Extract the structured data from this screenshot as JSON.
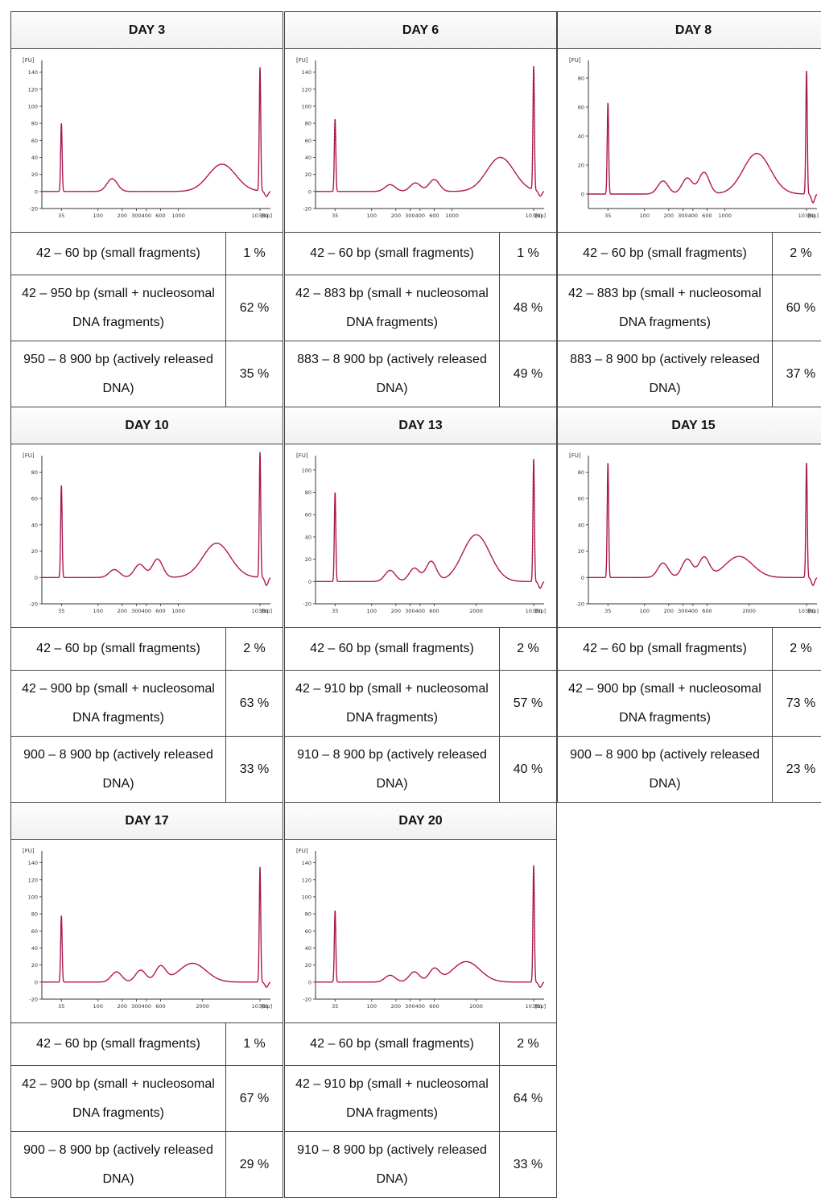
{
  "panels": [
    {
      "title": "DAY 3",
      "rows": [
        {
          "label": "42 – 60 bp (small fragments)",
          "pct": "1 %"
        },
        {
          "label": "42 – 950 bp (small + nucleosomal DNA fragments)",
          "pct": "62 %"
        },
        {
          "label": "950 – 8 900 bp (actively released DNA)",
          "pct": "35 %"
        }
      ]
    },
    {
      "title": "DAY 6",
      "rows": [
        {
          "label": "42 – 60 bp (small fragments)",
          "pct": "1 %"
        },
        {
          "label": "42 – 883 bp (small + nucleosomal DNA fragments)",
          "pct": "48 %"
        },
        {
          "label": "883 – 8 900 bp (actively released DNA)",
          "pct": "49 %"
        }
      ]
    },
    {
      "title": "DAY 8",
      "rows": [
        {
          "label": "42 – 60 bp (small fragments)",
          "pct": "2 %"
        },
        {
          "label": "42 – 883 bp (small + nucleosomal DNA fragments)",
          "pct": "60 %"
        },
        {
          "label": "883 – 8 900 bp (actively released DNA)",
          "pct": "37 %"
        }
      ]
    },
    {
      "title": "DAY 10",
      "rows": [
        {
          "label": "42 – 60 bp (small fragments)",
          "pct": "2 %"
        },
        {
          "label": "42 – 900 bp (small + nucleosomal DNA fragments)",
          "pct": "63 %"
        },
        {
          "label": "900 – 8 900 bp (actively released DNA)",
          "pct": "33 %"
        }
      ]
    },
    {
      "title": "DAY 13",
      "rows": [
        {
          "label": "42 – 60 bp (small fragments)",
          "pct": "2 %"
        },
        {
          "label": "42 – 910 bp (small + nucleosomal DNA fragments)",
          "pct": "57 %"
        },
        {
          "label": "910 – 8 900 bp (actively released DNA)",
          "pct": "40 %"
        }
      ]
    },
    {
      "title": "DAY 15",
      "rows": [
        {
          "label": "42 – 60 bp (small fragments)",
          "pct": "2 %"
        },
        {
          "label": "42 – 900 bp (small + nucleosomal DNA fragments)",
          "pct": "73 %"
        },
        {
          "label": "900 – 8 900 bp (actively released DNA)",
          "pct": "23 %"
        }
      ]
    },
    {
      "title": "DAY 17",
      "rows": [
        {
          "label": "42 – 60 bp (small fragments)",
          "pct": "1 %"
        },
        {
          "label": "42 – 900 bp (small + nucleosomal DNA fragments)",
          "pct": "67 %"
        },
        {
          "label": "900 – 8 900 bp (actively released DNA)",
          "pct": "29 %"
        }
      ]
    },
    {
      "title": "DAY 20",
      "rows": [
        {
          "label": "42 – 60 bp (small fragments)",
          "pct": "2 %"
        },
        {
          "label": "42 – 910 bp (small + nucleosomal DNA fragments)",
          "pct": "64 %"
        },
        {
          "label": "910 – 8 900 bp (actively released DNA)",
          "pct": "33 %"
        }
      ]
    }
  ],
  "chart_data": [
    {
      "type": "line",
      "title": "DAY 3",
      "xlabel": "[bp]",
      "ylabel": "[FU]",
      "ylim": [
        -20,
        150
      ],
      "yticks": [
        -20,
        0,
        20,
        40,
        60,
        80,
        100,
        120,
        140
      ],
      "xticks": [
        "35",
        "100",
        "200",
        "300",
        "400",
        "600",
        "1000",
        "10380"
      ],
      "line_color": "#c2185b",
      "peaks": [
        {
          "x": 35,
          "y": 80
        },
        {
          "x": 150,
          "y": 15
        },
        {
          "x": 3500,
          "y": 32
        },
        {
          "x": 10380,
          "y": 145
        }
      ]
    },
    {
      "type": "line",
      "title": "DAY 6",
      "xlabel": "[bp]",
      "ylabel": "[FU]",
      "ylim": [
        -20,
        150
      ],
      "yticks": [
        -20,
        0,
        20,
        40,
        60,
        80,
        100,
        120,
        140
      ],
      "xticks": [
        "35",
        "100",
        "200",
        "300",
        "400",
        "600",
        "1000",
        "10380"
      ],
      "line_color": "#c2185b",
      "peaks": [
        {
          "x": 35,
          "y": 85
        },
        {
          "x": 170,
          "y": 8
        },
        {
          "x": 350,
          "y": 10
        },
        {
          "x": 600,
          "y": 14
        },
        {
          "x": 4000,
          "y": 40
        },
        {
          "x": 10380,
          "y": 145
        }
      ]
    },
    {
      "type": "line",
      "title": "DAY 8",
      "xlabel": "[bp]",
      "ylabel": "[FU]",
      "ylim": [
        -10,
        90
      ],
      "yticks": [
        0,
        20,
        40,
        60,
        80
      ],
      "xticks": [
        "35",
        "100",
        "200",
        "300",
        "400",
        "600",
        "1000",
        "10380"
      ],
      "line_color": "#c2185b",
      "peaks": [
        {
          "x": 35,
          "y": 63
        },
        {
          "x": 170,
          "y": 9
        },
        {
          "x": 340,
          "y": 11
        },
        {
          "x": 550,
          "y": 15
        },
        {
          "x": 2500,
          "y": 28
        },
        {
          "x": 10380,
          "y": 85
        }
      ]
    },
    {
      "type": "line",
      "title": "DAY 10",
      "xlabel": "[bp]",
      "ylabel": "[FU]",
      "ylim": [
        -20,
        90
      ],
      "yticks": [
        -20,
        0,
        20,
        40,
        60,
        80
      ],
      "xticks": [
        "35",
        "100",
        "200",
        "300",
        "400",
        "600",
        "1000",
        "10380"
      ],
      "line_color": "#c2185b",
      "peaks": [
        {
          "x": 35,
          "y": 70
        },
        {
          "x": 160,
          "y": 6
        },
        {
          "x": 330,
          "y": 10
        },
        {
          "x": 550,
          "y": 14
        },
        {
          "x": 3000,
          "y": 26
        },
        {
          "x": 10380,
          "y": 95
        }
      ]
    },
    {
      "type": "line",
      "title": "DAY 13",
      "xlabel": "[bp]",
      "ylabel": "[FU]",
      "ylim": [
        -20,
        110
      ],
      "yticks": [
        -20,
        0,
        20,
        40,
        60,
        80,
        100
      ],
      "xticks": [
        "35",
        "100",
        "200",
        "300",
        "400",
        "600",
        "2000",
        "10380"
      ],
      "line_color": "#c2185b",
      "peaks": [
        {
          "x": 35,
          "y": 80
        },
        {
          "x": 170,
          "y": 10
        },
        {
          "x": 340,
          "y": 12
        },
        {
          "x": 550,
          "y": 18
        },
        {
          "x": 2000,
          "y": 42
        },
        {
          "x": 10380,
          "y": 110
        }
      ]
    },
    {
      "type": "line",
      "title": "DAY 15",
      "xlabel": "[bp]",
      "ylabel": "[FU]",
      "ylim": [
        -20,
        90
      ],
      "yticks": [
        -20,
        0,
        20,
        40,
        60,
        80
      ],
      "xticks": [
        "35",
        "100",
        "200",
        "300",
        "400",
        "600",
        "2000",
        "10380"
      ],
      "line_color": "#c2185b",
      "peaks": [
        {
          "x": 35,
          "y": 87
        },
        {
          "x": 170,
          "y": 11
        },
        {
          "x": 340,
          "y": 14
        },
        {
          "x": 550,
          "y": 15
        },
        {
          "x": 1500,
          "y": 16
        },
        {
          "x": 10380,
          "y": 87
        }
      ]
    },
    {
      "type": "line",
      "title": "DAY 17",
      "xlabel": "[bp]",
      "ylabel": "[FU]",
      "ylim": [
        -20,
        150
      ],
      "yticks": [
        -20,
        0,
        20,
        40,
        60,
        80,
        100,
        120,
        140
      ],
      "xticks": [
        "35",
        "100",
        "200",
        "300",
        "400",
        "600",
        "2000",
        "10380"
      ],
      "line_color": "#c2185b",
      "peaks": [
        {
          "x": 35,
          "y": 78
        },
        {
          "x": 170,
          "y": 12
        },
        {
          "x": 340,
          "y": 14
        },
        {
          "x": 600,
          "y": 18
        },
        {
          "x": 1500,
          "y": 22
        },
        {
          "x": 10380,
          "y": 135
        }
      ]
    },
    {
      "type": "line",
      "title": "DAY 20",
      "xlabel": "[bp]",
      "ylabel": "[FU]",
      "ylim": [
        -20,
        150
      ],
      "yticks": [
        -20,
        0,
        20,
        40,
        60,
        80,
        100,
        120,
        140
      ],
      "xticks": [
        "35",
        "100",
        "200",
        "300",
        "400",
        "600",
        "2000",
        "10380"
      ],
      "line_color": "#c2185b",
      "peaks": [
        {
          "x": 35,
          "y": 84
        },
        {
          "x": 170,
          "y": 8
        },
        {
          "x": 340,
          "y": 12
        },
        {
          "x": 600,
          "y": 15
        },
        {
          "x": 1500,
          "y": 24
        },
        {
          "x": 10380,
          "y": 137
        }
      ]
    }
  ]
}
